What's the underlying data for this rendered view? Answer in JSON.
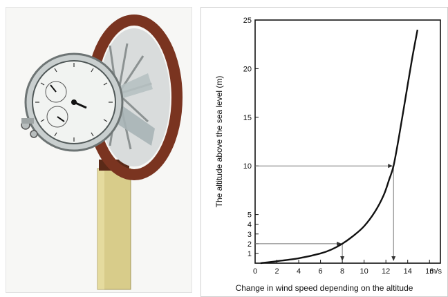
{
  "chart_data": {
    "type": "line",
    "title": "",
    "xlabel": "Change in wind speed depending on the altitude",
    "ylabel": "The altitude above the sea level (m)",
    "x_unit": "m/s",
    "xlim": [
      0,
      17
    ],
    "ylim": [
      0,
      25
    ],
    "x_ticks": [
      0,
      2,
      4,
      6,
      8,
      10,
      12,
      14,
      16
    ],
    "y_ticks": [
      1,
      2,
      3,
      4,
      5,
      10,
      15,
      20,
      25
    ],
    "y_tick_zero_label": "0",
    "grid": false,
    "legend": "none",
    "series": [
      {
        "x": [
          0.5,
          2,
          4,
          6,
          7,
          8,
          9,
          10,
          11,
          11.8,
          12.3,
          12.7,
          13.2,
          13.8,
          14.4,
          14.9
        ],
        "y": [
          0,
          0.2,
          0.5,
          1.0,
          1.4,
          2.0,
          2.8,
          3.8,
          5.3,
          7.0,
          8.6,
          10.0,
          13.0,
          17.0,
          21.0,
          24.0
        ],
        "color": "#111111"
      }
    ],
    "reference_points": [
      {
        "x": 8,
        "y": 2
      },
      {
        "x": 12.7,
        "y": 10
      }
    ],
    "line_color": "#111111",
    "guide_color": "#777777"
  },
  "photo": {
    "subject": "anemometer-illustration",
    "colors": {
      "ring": "#7a3420",
      "handle": "#d8cc8a",
      "dial": "#f1f3f1"
    }
  }
}
